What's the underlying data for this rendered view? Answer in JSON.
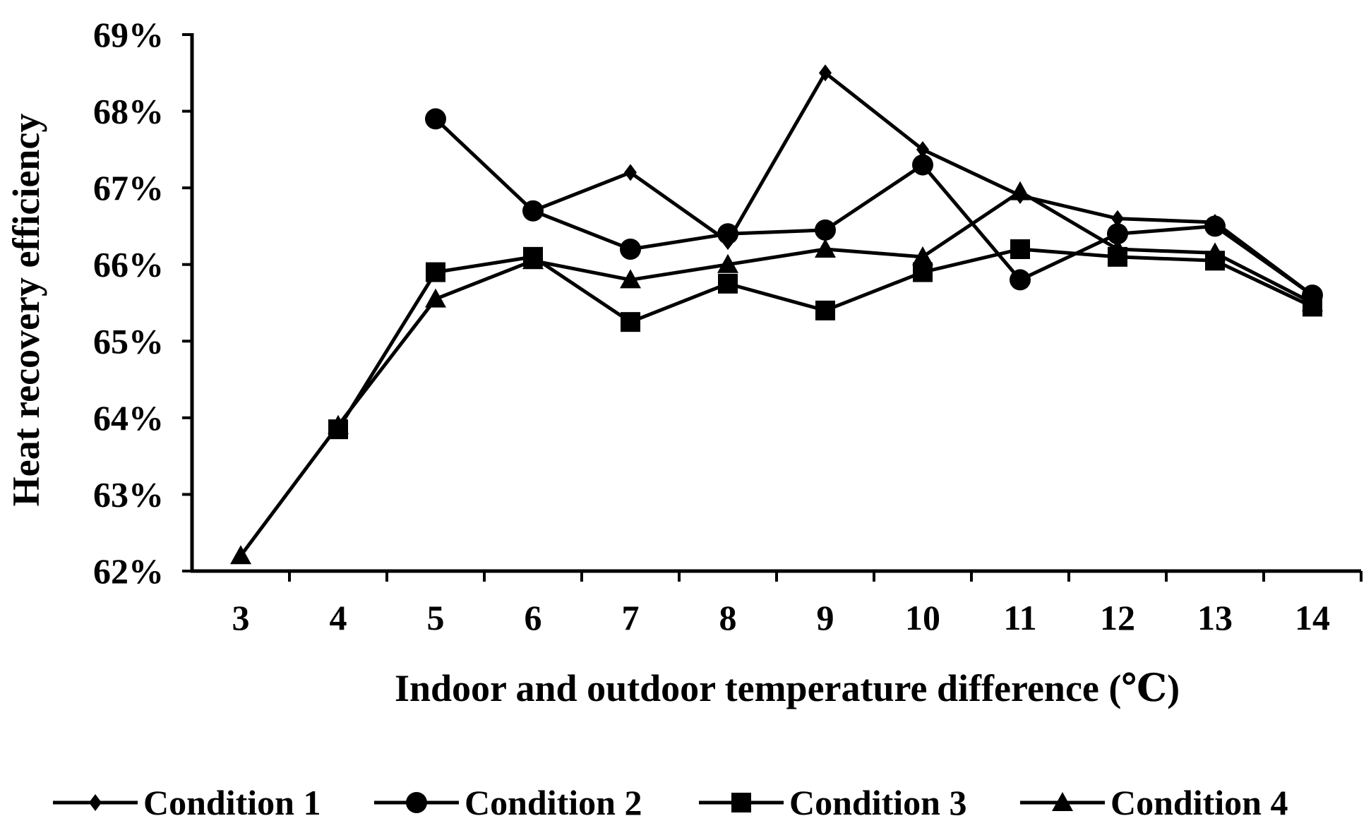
{
  "chart_data": {
    "type": "line",
    "title": "",
    "xlabel": "Indoor and outdoor temperature difference (℃)",
    "ylabel": "Heat recovery efficiency",
    "x": [
      3,
      4,
      5,
      6,
      7,
      8,
      9,
      10,
      11,
      12,
      13,
      14
    ],
    "x_tick_labels": [
      "3",
      "4",
      "5",
      "6",
      "7",
      "8",
      "9",
      "10",
      "11",
      "12",
      "13",
      "14"
    ],
    "ylim": [
      62,
      69
    ],
    "y_ticks": [
      62,
      63,
      64,
      65,
      66,
      67,
      68,
      69
    ],
    "y_tick_labels": [
      "62%",
      "63%",
      "64%",
      "65%",
      "66%",
      "67%",
      "68%",
      "69%"
    ],
    "legend_position": "bottom",
    "series": [
      {
        "name": "Condition 1",
        "marker": "diamond",
        "values": [
          null,
          null,
          null,
          66.7,
          67.2,
          66.3,
          68.5,
          67.5,
          66.9,
          66.6,
          66.55,
          65.6
        ]
      },
      {
        "name": "Condition 2",
        "marker": "circle",
        "values": [
          null,
          null,
          67.9,
          66.7,
          66.2,
          66.4,
          66.45,
          67.3,
          65.8,
          66.4,
          66.5,
          65.6
        ]
      },
      {
        "name": "Condition 3",
        "marker": "square",
        "values": [
          null,
          63.85,
          65.9,
          66.1,
          65.25,
          65.75,
          65.4,
          65.9,
          66.2,
          66.1,
          66.05,
          65.45
        ]
      },
      {
        "name": "Condition 4",
        "marker": "triangle",
        "values": [
          62.2,
          63.9,
          65.55,
          66.05,
          65.8,
          66.0,
          66.2,
          66.1,
          66.95,
          66.2,
          66.15,
          65.5
        ]
      }
    ]
  }
}
